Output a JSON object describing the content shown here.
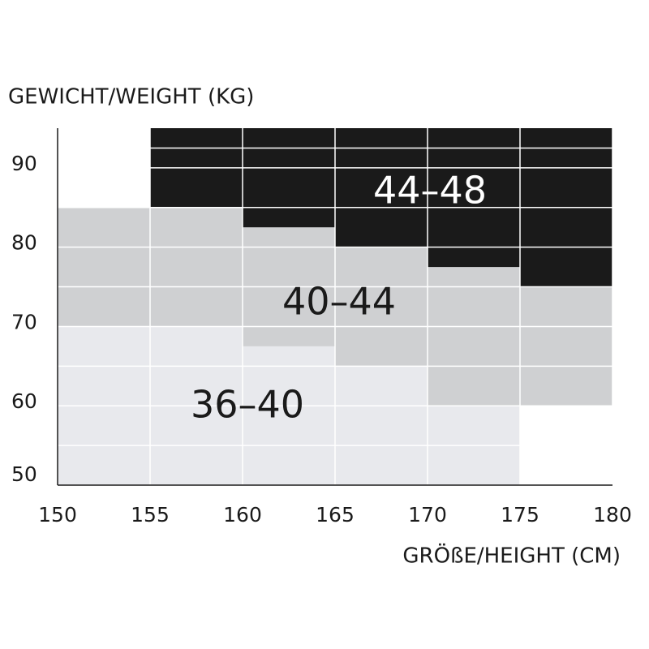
{
  "chart_data": {
    "type": "region",
    "title": "GEWICHT/WEIGHT (KG)",
    "x_label": "GRÖßE/HEIGHT (CM)",
    "bins": [
      150,
      155,
      160,
      165,
      170,
      175,
      180
    ],
    "xlim": [
      150,
      180
    ],
    "xticks": [
      150,
      155,
      160,
      165,
      170,
      175,
      180
    ],
    "ylim": [
      50,
      95
    ],
    "yticks": [
      50,
      60,
      70,
      80,
      90
    ],
    "grid": true,
    "series": [
      {
        "name": "36–40",
        "color": "#e8e9ed",
        "text_color": "#1a1a1a",
        "lower": [
          50,
          50,
          50,
          50,
          50,
          null
        ],
        "upper": [
          70,
          70,
          67.5,
          65,
          60,
          null
        ]
      },
      {
        "name": "40–44",
        "color": "#cfd0d2",
        "text_color": "#1a1a1a",
        "lower": [
          70,
          70,
          67.5,
          65,
          60,
          60
        ],
        "upper": [
          85,
          85,
          82.5,
          80,
          77.5,
          75
        ]
      },
      {
        "name": "44–48",
        "color": "#1a1a1a",
        "text_color": "#ffffff",
        "lower": [
          null,
          85,
          82.5,
          80,
          77.5,
          75
        ],
        "upper": [
          null,
          95,
          95,
          95,
          95,
          95
        ]
      }
    ]
  }
}
